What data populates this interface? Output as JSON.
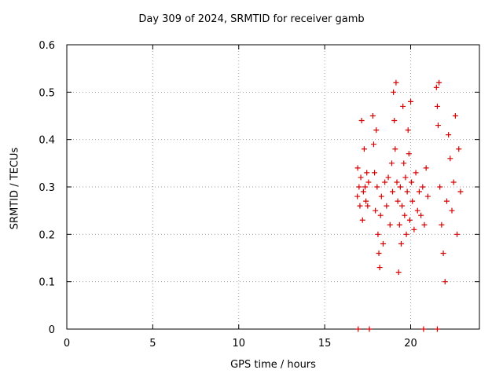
{
  "chart_data": {
    "type": "scatter",
    "title": "Day 309 of 2024, SRMTID for receiver gamb",
    "xlabel": "GPS time / hours",
    "ylabel": "SRMTID / TECUs",
    "xlim": [
      0,
      24
    ],
    "ylim": [
      0,
      0.6
    ],
    "xticks": [
      "0",
      "5",
      "10",
      "15",
      "20"
    ],
    "yticks": [
      "0",
      "0.1",
      "0.2",
      "0.3",
      "0.4",
      "0.5",
      "0.6"
    ],
    "xtick_values": [
      0,
      5,
      10,
      15,
      20
    ],
    "ytick_values": [
      0,
      0.1,
      0.2,
      0.3,
      0.4,
      0.5,
      0.6
    ],
    "grid": true,
    "marker": "+",
    "color": "#d60000",
    "series": [
      {
        "name": "gamb",
        "x": [
          16.9,
          16.92,
          17.0,
          17.05,
          17.1,
          17.15,
          17.2,
          17.25,
          17.3,
          17.35,
          17.4,
          17.45,
          17.5,
          17.55,
          17.8,
          17.85,
          17.9,
          17.95,
          18.0,
          18.05,
          18.1,
          18.15,
          18.2,
          18.25,
          18.3,
          18.4,
          18.5,
          18.6,
          18.7,
          18.8,
          18.9,
          18.95,
          19.0,
          19.05,
          19.1,
          19.15,
          19.2,
          19.25,
          19.3,
          19.35,
          19.4,
          19.45,
          19.5,
          19.55,
          19.6,
          19.65,
          19.7,
          19.75,
          19.8,
          19.85,
          19.9,
          19.95,
          20.0,
          20.05,
          20.1,
          20.2,
          20.3,
          20.4,
          20.5,
          20.6,
          20.7,
          20.8,
          20.9,
          21.0,
          21.5,
          21.55,
          21.6,
          21.65,
          21.7,
          21.8,
          21.9,
          22.0,
          22.1,
          22.2,
          22.3,
          22.4,
          22.5,
          22.6,
          22.7,
          22.8,
          22.9,
          16.95,
          17.6,
          20.75,
          21.55
        ],
        "y": [
          0.28,
          0.34,
          0.3,
          0.26,
          0.32,
          0.44,
          0.23,
          0.29,
          0.38,
          0.3,
          0.27,
          0.33,
          0.26,
          0.31,
          0.45,
          0.39,
          0.33,
          0.25,
          0.42,
          0.3,
          0.2,
          0.16,
          0.13,
          0.24,
          0.28,
          0.18,
          0.31,
          0.26,
          0.32,
          0.22,
          0.35,
          0.29,
          0.5,
          0.44,
          0.38,
          0.52,
          0.31,
          0.27,
          0.12,
          0.22,
          0.3,
          0.18,
          0.26,
          0.47,
          0.35,
          0.24,
          0.32,
          0.2,
          0.29,
          0.42,
          0.37,
          0.23,
          0.48,
          0.31,
          0.27,
          0.21,
          0.33,
          0.25,
          0.29,
          0.24,
          0.3,
          0.22,
          0.34,
          0.28,
          0.51,
          0.47,
          0.43,
          0.52,
          0.3,
          0.22,
          0.16,
          0.1,
          0.27,
          0.41,
          0.36,
          0.25,
          0.31,
          0.45,
          0.2,
          0.38,
          0.29,
          0.0,
          0.0,
          0.0,
          0.0
        ]
      }
    ]
  }
}
